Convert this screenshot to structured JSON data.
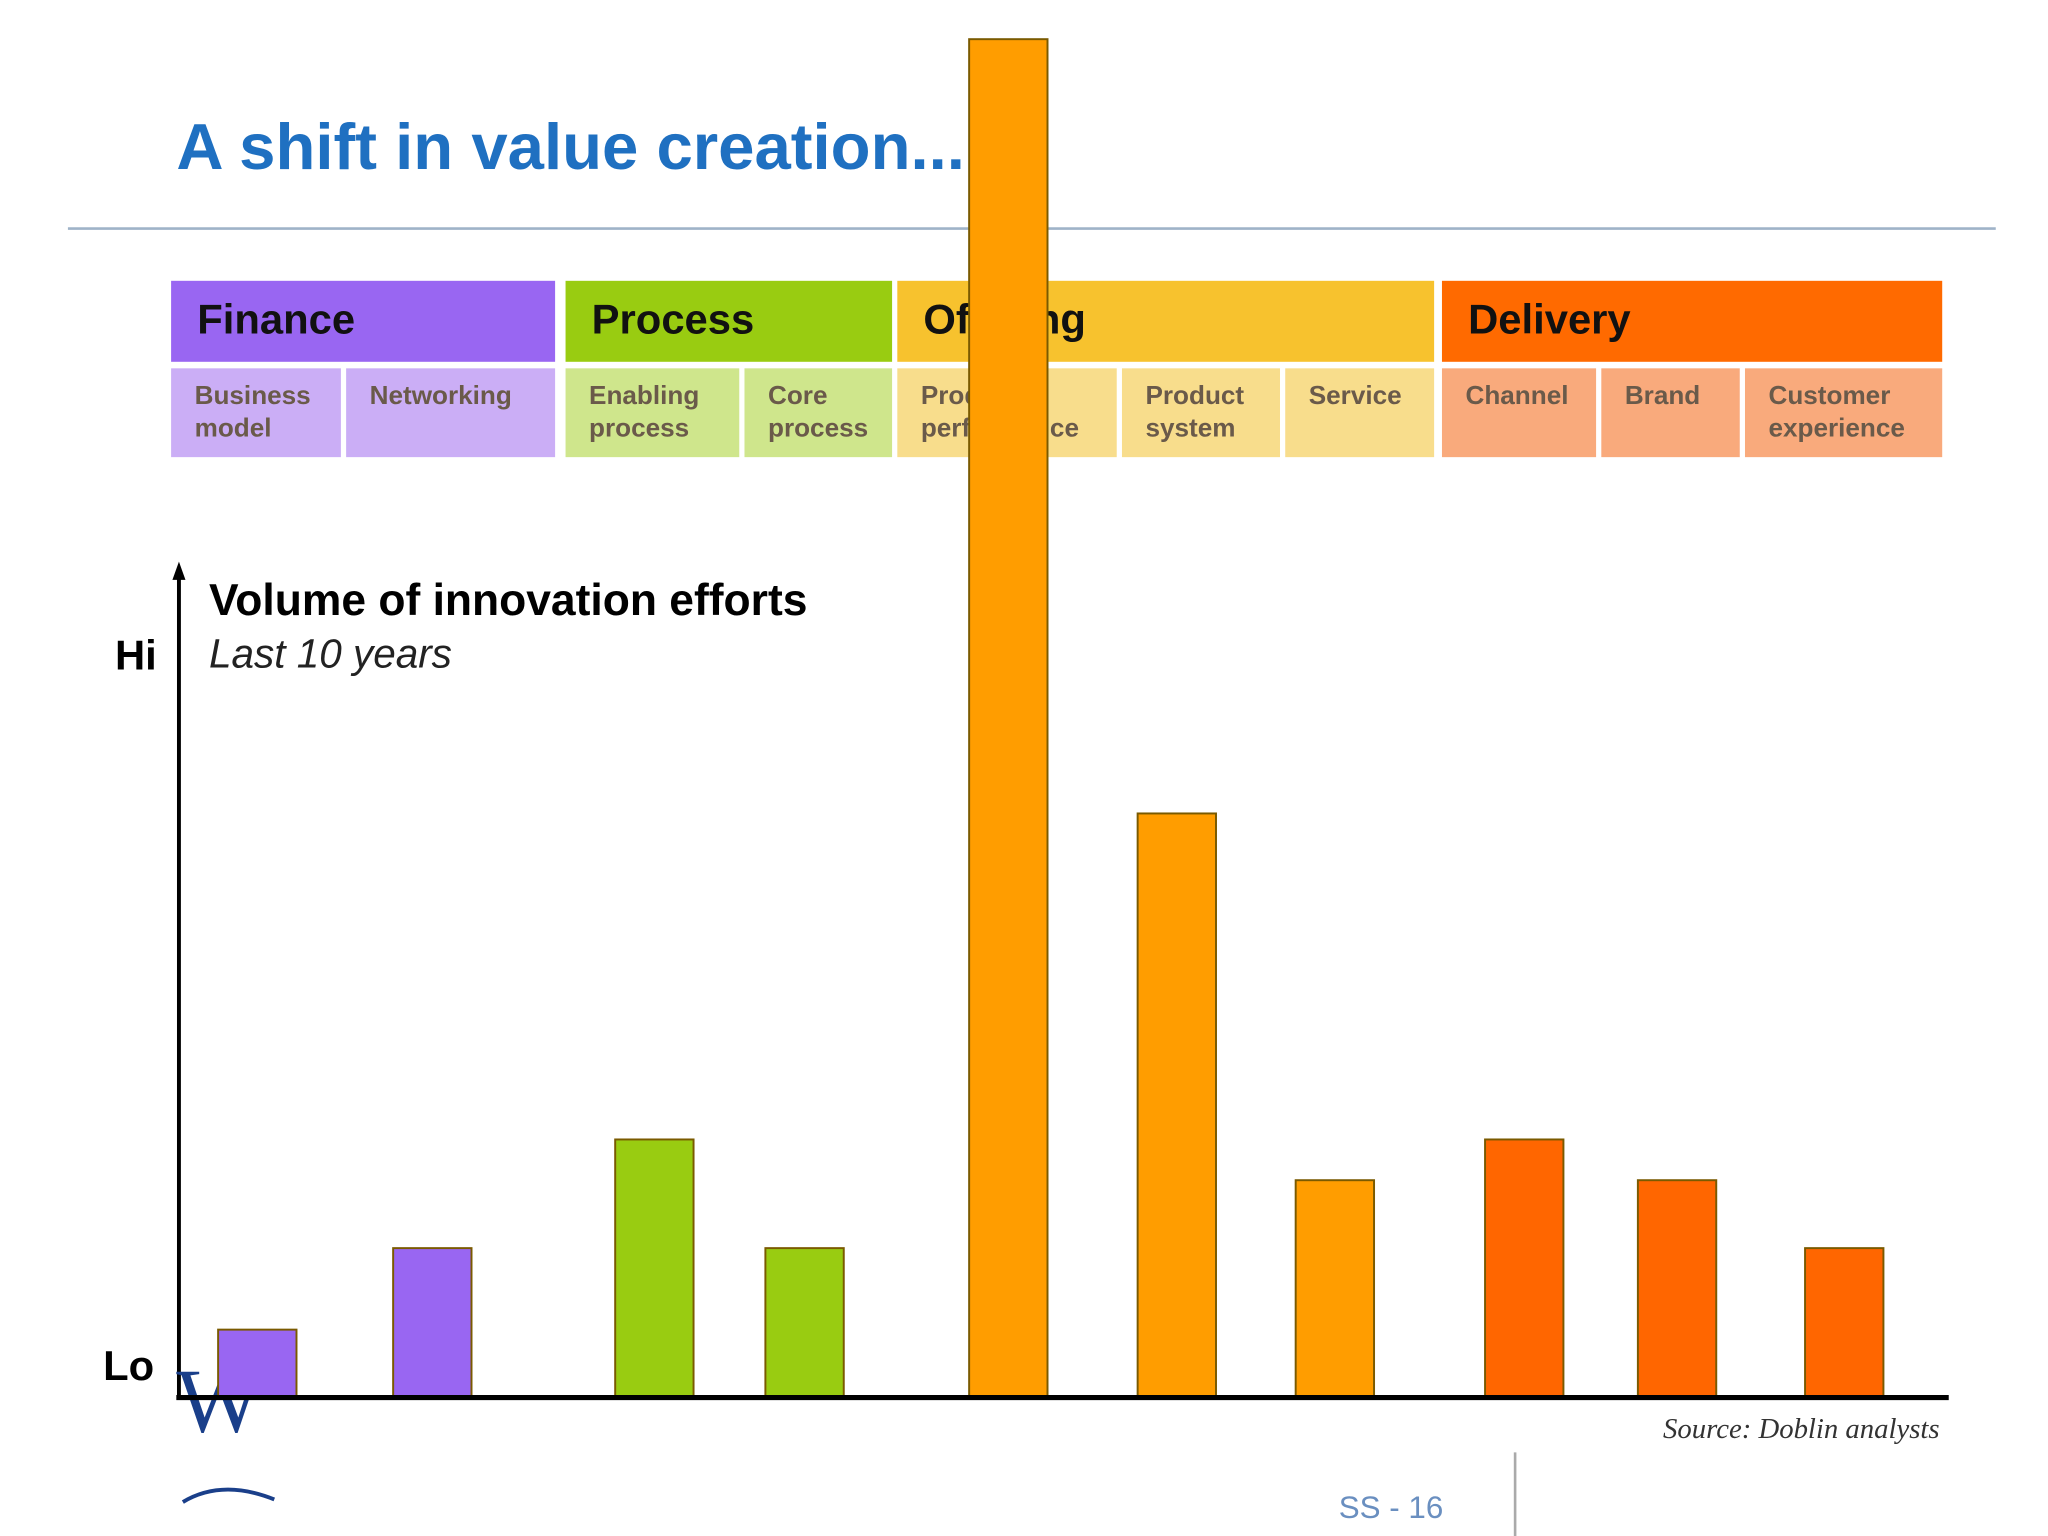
{
  "chart_data": {
    "type": "bar",
    "title": "A shift in value creation...",
    "subtitle": "Volume of innovation efforts",
    "period": "Last 10 years",
    "axis_labels": {
      "high": "Hi",
      "low": "Lo"
    },
    "ylim": [
      0,
      100
    ],
    "groups": [
      {
        "name": "Finance",
        "header_color": "#9966f2",
        "light_color": "#cbaef6",
        "color": "#9966f2",
        "categories": [
          "Business model",
          "Networking"
        ],
        "values": [
          5,
          11
        ]
      },
      {
        "name": "Process",
        "header_color": "#99cc11",
        "light_color": "#cfe68c",
        "color": "#99cc11",
        "categories": [
          "Enabling process",
          "Core process"
        ],
        "values": [
          19,
          11
        ]
      },
      {
        "name": "Offering",
        "header_color": "#f7c22e",
        "light_color": "#f8dd8c",
        "color": "#ff9d00",
        "categories": [
          "Product performance",
          "Product system",
          "Service"
        ],
        "values": [
          100,
          43,
          16
        ]
      },
      {
        "name": "Delivery",
        "header_color": "#ff6a00",
        "light_color": "#f9aa7c",
        "color": "#ff6600",
        "categories": [
          "Channel",
          "Brand",
          "Customer experience"
        ],
        "values": [
          19,
          16,
          11
        ]
      }
    ],
    "source": "Source: Doblin analysts",
    "logo": "W",
    "page_number": "SS - 16"
  }
}
